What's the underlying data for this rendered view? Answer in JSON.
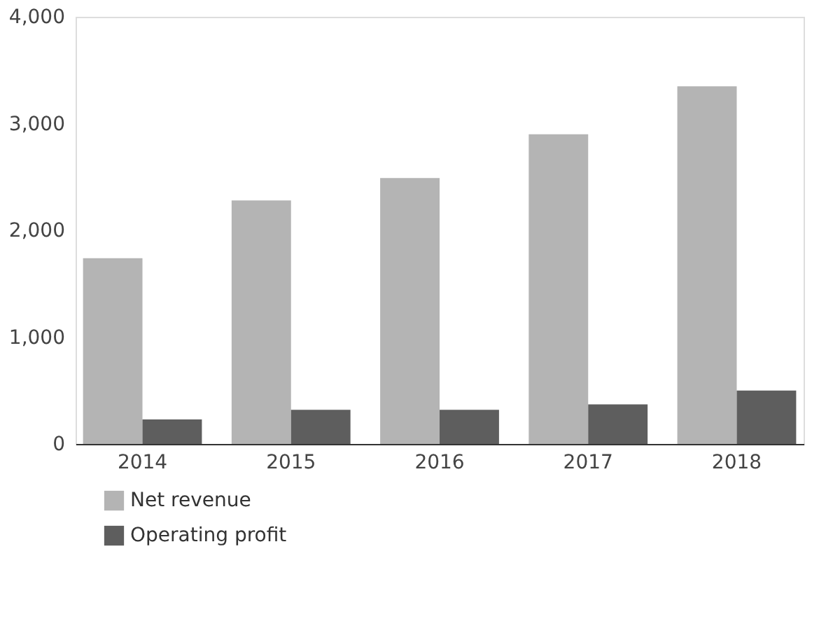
{
  "chart_data": {
    "type": "bar",
    "categories": [
      "2014",
      "2015",
      "2016",
      "2017",
      "2018"
    ],
    "series": [
      {
        "name": "Net revenue",
        "color": "#b4b4b4",
        "values": [
          1740,
          2280,
          2490,
          2900,
          3350
        ]
      },
      {
        "name": "Operating profit",
        "color": "#5e5e5e",
        "values": [
          230,
          320,
          320,
          370,
          500
        ]
      }
    ],
    "ylim": [
      0,
      4000
    ],
    "yticks": [
      0,
      {
        "value": 1000,
        "label": "1,000"
      },
      {
        "value": 2000,
        "label": "2,000"
      },
      {
        "value": 3000,
        "label": "3,000"
      },
      {
        "value": 4000,
        "label": "4,000"
      }
    ],
    "grid": false,
    "legend": "bottom left"
  }
}
